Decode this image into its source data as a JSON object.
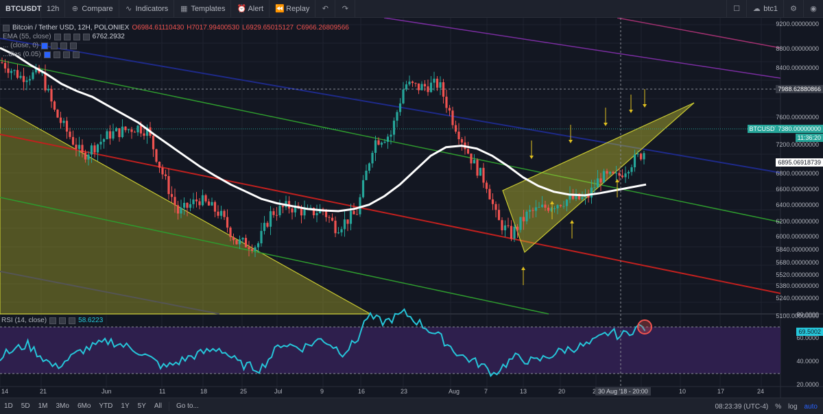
{
  "toolbar": {
    "symbol": "BTCUSDT",
    "interval": "12h",
    "compare": "Compare",
    "indicators": "Indicators",
    "templates": "Templates",
    "alert": "Alert",
    "replay": "Replay",
    "layout_name": "btc1"
  },
  "legend": {
    "title": "Bitcoin / Tether USD, 12H, POLONIEX",
    "open": "O6984.61110430",
    "high": "H7017.99400530",
    "low": "L6929.65015127",
    "close": "C6966.26809566",
    "ema_label": "EMA (55, close)",
    "ema_value": "6762.2932",
    "ind2_label": "... (close, 0)",
    "ind3_label": "...dles (0.05)"
  },
  "rsi": {
    "label": "RSI (14, close)",
    "value": "58.6223",
    "tag": "69.5002"
  },
  "price_scale": {
    "labels": [
      "9200.00000000",
      "8800.00000000",
      "8400.00000000",
      "7600.00000000",
      "7200.00000000",
      "7000.00000000",
      "6800.00000000",
      "6600.00000000",
      "6400.00000000",
      "6200.00000000",
      "6000.00000000",
      "5840.00000000",
      "5680.00000000",
      "5520.00000000",
      "5380.00000000",
      "5240.00000000",
      "5100.00000000"
    ],
    "cross_price": "7988.62880866",
    "last_price": "7380.00000000",
    "countdown": "11:36:20",
    "ema_tag": "6895.06918739",
    "symbol_tag": "BTCUSDT"
  },
  "rsi_scale": {
    "labels": [
      "80.0000",
      "60.0000",
      "40.0000",
      "20.0000"
    ]
  },
  "time_axis": {
    "labels": [
      "14",
      "21",
      "Jun",
      "11",
      "18",
      "25",
      "Jul",
      "9",
      "16",
      "23",
      "Aug",
      "7",
      "13",
      "20",
      "26",
      "10",
      "17",
      "24"
    ],
    "cursor_time": "30 Aug '18 - 20:00"
  },
  "bottom": {
    "ranges": [
      "1D",
      "5D",
      "1M",
      "3Mo",
      "6Mo",
      "YTD",
      "1Y",
      "5Y",
      "All"
    ],
    "goto": "Go to...",
    "clock": "08:23:39 (UTC-4)",
    "percent": "%",
    "log": "log",
    "auto": "auto"
  },
  "colors": {
    "up": "#26a69a",
    "down": "#ef5350",
    "ema": "#ffffff",
    "rsi": "#26c6da",
    "wedge": "#c8c832",
    "rsi_band": "#2e1f4d",
    "bg": "#131722"
  },
  "chart_data": {
    "type": "candlestick",
    "ylim": [
      5100,
      9200
    ],
    "rsi_ylim": [
      20,
      80
    ],
    "ema_points": [
      8800,
      8700,
      8560,
      8440,
      8300,
      8200,
      8120,
      8000,
      7880,
      7760,
      7600,
      7450,
      7300,
      7150,
      7020,
      6900,
      6800,
      6700,
      6640,
      6600,
      6560,
      6540,
      6530,
      6560,
      6620,
      6740,
      6900,
      7100,
      7300,
      7420,
      7440,
      7400,
      7300,
      7160,
      7000,
      6880,
      6800,
      6760,
      6750,
      6780,
      6820,
      6860,
      6900
    ]
  }
}
